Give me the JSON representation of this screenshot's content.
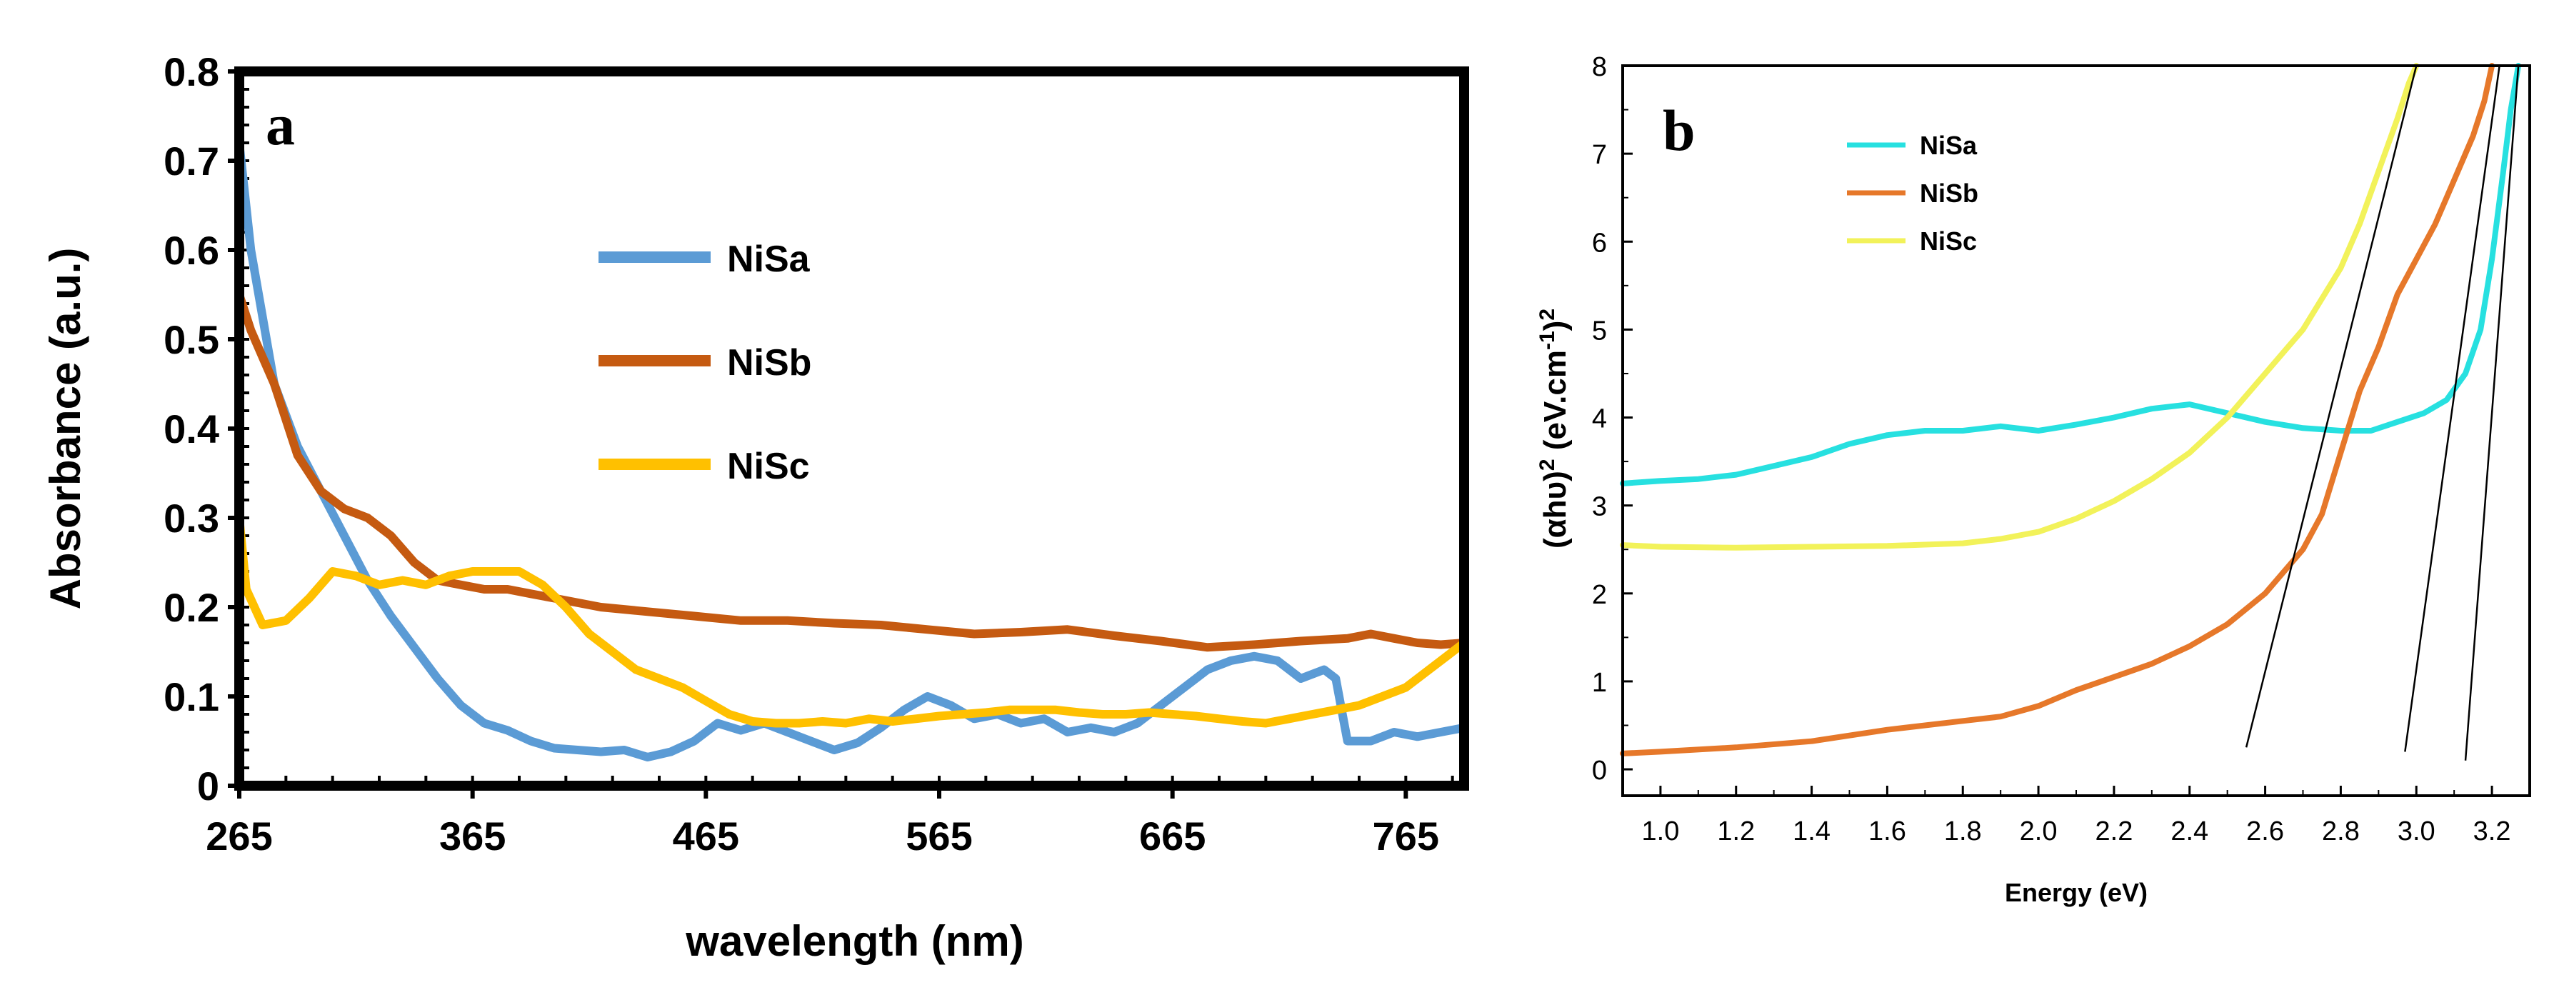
{
  "chart_data": [
    {
      "panel_label": "a",
      "type": "line",
      "title": "",
      "xlabel": "wavelength (nm)",
      "ylabel": "Absorbance (a.u.)",
      "xlim": [
        265,
        790
      ],
      "ylim": [
        0,
        0.8
      ],
      "xticks": [
        265,
        365,
        465,
        565,
        665,
        765
      ],
      "yticks": [
        0,
        0.1,
        0.2,
        0.3,
        0.4,
        0.5,
        0.6,
        0.7,
        0.8
      ],
      "xtick_labels": [
        "265",
        "365",
        "465",
        "565",
        "665",
        "765"
      ],
      "ytick_labels": [
        "0",
        "0.1",
        "0.2",
        "0.3",
        "0.4",
        "0.5",
        "0.6",
        "0.7",
        "0.8"
      ],
      "legend_position": "center",
      "series": [
        {
          "name": "NiSa",
          "color": "#5b9bd5",
          "points": [
            [
              265,
              0.72
            ],
            [
              270,
              0.6
            ],
            [
              280,
              0.45
            ],
            [
              290,
              0.38
            ],
            [
              300,
              0.33
            ],
            [
              310,
              0.28
            ],
            [
              320,
              0.23
            ],
            [
              330,
              0.19
            ],
            [
              340,
              0.155
            ],
            [
              350,
              0.12
            ],
            [
              360,
              0.09
            ],
            [
              370,
              0.07
            ],
            [
              380,
              0.062
            ],
            [
              390,
              0.05
            ],
            [
              400,
              0.042
            ],
            [
              410,
              0.04
            ],
            [
              420,
              0.038
            ],
            [
              430,
              0.04
            ],
            [
              440,
              0.032
            ],
            [
              450,
              0.038
            ],
            [
              460,
              0.05
            ],
            [
              470,
              0.07
            ],
            [
              480,
              0.062
            ],
            [
              490,
              0.07
            ],
            [
              500,
              0.06
            ],
            [
              510,
              0.05
            ],
            [
              520,
              0.04
            ],
            [
              530,
              0.048
            ],
            [
              540,
              0.065
            ],
            [
              550,
              0.085
            ],
            [
              560,
              0.1
            ],
            [
              570,
              0.09
            ],
            [
              580,
              0.075
            ],
            [
              590,
              0.08
            ],
            [
              600,
              0.07
            ],
            [
              610,
              0.075
            ],
            [
              620,
              0.06
            ],
            [
              630,
              0.065
            ],
            [
              640,
              0.06
            ],
            [
              650,
              0.07
            ],
            [
              660,
              0.09
            ],
            [
              670,
              0.11
            ],
            [
              680,
              0.13
            ],
            [
              690,
              0.14
            ],
            [
              700,
              0.145
            ],
            [
              710,
              0.14
            ],
            [
              720,
              0.12
            ],
            [
              730,
              0.13
            ],
            [
              735,
              0.12
            ],
            [
              740,
              0.05
            ],
            [
              750,
              0.05
            ],
            [
              760,
              0.06
            ],
            [
              770,
              0.055
            ],
            [
              780,
              0.06
            ],
            [
              790,
              0.065
            ]
          ]
        },
        {
          "name": "NiSb",
          "color": "#c55a11",
          "points": [
            [
              265,
              0.55
            ],
            [
              270,
              0.51
            ],
            [
              280,
              0.45
            ],
            [
              290,
              0.37
            ],
            [
              300,
              0.33
            ],
            [
              310,
              0.31
            ],
            [
              320,
              0.3
            ],
            [
              330,
              0.28
            ],
            [
              340,
              0.25
            ],
            [
              350,
              0.23
            ],
            [
              360,
              0.225
            ],
            [
              370,
              0.22
            ],
            [
              380,
              0.22
            ],
            [
              390,
              0.215
            ],
            [
              400,
              0.21
            ],
            [
              420,
              0.2
            ],
            [
              440,
              0.195
            ],
            [
              460,
              0.19
            ],
            [
              480,
              0.185
            ],
            [
              500,
              0.185
            ],
            [
              520,
              0.182
            ],
            [
              540,
              0.18
            ],
            [
              560,
              0.175
            ],
            [
              580,
              0.17
            ],
            [
              600,
              0.172
            ],
            [
              620,
              0.175
            ],
            [
              640,
              0.168
            ],
            [
              660,
              0.162
            ],
            [
              680,
              0.155
            ],
            [
              700,
              0.158
            ],
            [
              720,
              0.162
            ],
            [
              740,
              0.165
            ],
            [
              750,
              0.17
            ],
            [
              760,
              0.165
            ],
            [
              770,
              0.16
            ],
            [
              780,
              0.158
            ],
            [
              790,
              0.16
            ]
          ]
        },
        {
          "name": "NiSc",
          "color": "#ffc000",
          "points": [
            [
              265,
              0.3
            ],
            [
              268,
              0.22
            ],
            [
              275,
              0.18
            ],
            [
              285,
              0.185
            ],
            [
              295,
              0.21
            ],
            [
              305,
              0.24
            ],
            [
              315,
              0.235
            ],
            [
              325,
              0.225
            ],
            [
              335,
              0.23
            ],
            [
              345,
              0.225
            ],
            [
              355,
              0.235
            ],
            [
              365,
              0.24
            ],
            [
              375,
              0.24
            ],
            [
              385,
              0.24
            ],
            [
              395,
              0.225
            ],
            [
              405,
              0.2
            ],
            [
              415,
              0.17
            ],
            [
              425,
              0.15
            ],
            [
              435,
              0.13
            ],
            [
              445,
              0.12
            ],
            [
              455,
              0.11
            ],
            [
              465,
              0.095
            ],
            [
              475,
              0.08
            ],
            [
              485,
              0.072
            ],
            [
              495,
              0.07
            ],
            [
              505,
              0.07
            ],
            [
              515,
              0.072
            ],
            [
              525,
              0.07
            ],
            [
              535,
              0.075
            ],
            [
              545,
              0.072
            ],
            [
              555,
              0.075
            ],
            [
              565,
              0.078
            ],
            [
              575,
              0.08
            ],
            [
              585,
              0.082
            ],
            [
              595,
              0.085
            ],
            [
              605,
              0.085
            ],
            [
              615,
              0.085
            ],
            [
              625,
              0.082
            ],
            [
              635,
              0.08
            ],
            [
              645,
              0.08
            ],
            [
              655,
              0.082
            ],
            [
              665,
              0.08
            ],
            [
              675,
              0.078
            ],
            [
              685,
              0.075
            ],
            [
              695,
              0.072
            ],
            [
              705,
              0.07
            ],
            [
              715,
              0.075
            ],
            [
              725,
              0.08
            ],
            [
              735,
              0.085
            ],
            [
              745,
              0.09
            ],
            [
              755,
              0.1
            ],
            [
              765,
              0.11
            ],
            [
              775,
              0.13
            ],
            [
              785,
              0.15
            ],
            [
              790,
              0.16
            ]
          ]
        }
      ]
    },
    {
      "panel_label": "b",
      "type": "line",
      "title": "",
      "xlabel": "Energy (eV)",
      "ylabel": "(αhυ)²(eV.cm⁻¹)²",
      "ylabel_parts": [
        "(αhυ)",
        "2",
        " (eV.cm",
        "-1",
        ")",
        "2"
      ],
      "xlim": [
        0.9,
        3.3
      ],
      "ylim": [
        -0.3,
        8
      ],
      "xticks": [
        1.0,
        1.2,
        1.4,
        1.6,
        1.8,
        2.0,
        2.2,
        2.4,
        2.6,
        2.8,
        3.0,
        3.2
      ],
      "yticks": [
        0,
        1,
        2,
        3,
        4,
        5,
        6,
        7,
        8
      ],
      "xtick_labels": [
        "1.0",
        "1.2",
        "1.4",
        "1.6",
        "1.8",
        "2.0",
        "2.2",
        "2.4",
        "2.6",
        "2.8",
        "3.0",
        "3.2"
      ],
      "ytick_labels": [
        "0",
        "1",
        "2",
        "3",
        "4",
        "5",
        "6",
        "7",
        "8"
      ],
      "legend_position": "top-left",
      "series": [
        {
          "name": "NiSa",
          "color": "#27e0e0",
          "points": [
            [
              0.9,
              3.25
            ],
            [
              1.0,
              3.28
            ],
            [
              1.1,
              3.3
            ],
            [
              1.2,
              3.35
            ],
            [
              1.3,
              3.45
            ],
            [
              1.4,
              3.55
            ],
            [
              1.5,
              3.7
            ],
            [
              1.6,
              3.8
            ],
            [
              1.7,
              3.85
            ],
            [
              1.8,
              3.85
            ],
            [
              1.9,
              3.9
            ],
            [
              2.0,
              3.85
            ],
            [
              2.1,
              3.92
            ],
            [
              2.2,
              4.0
            ],
            [
              2.3,
              4.1
            ],
            [
              2.4,
              4.15
            ],
            [
              2.5,
              4.05
            ],
            [
              2.6,
              3.95
            ],
            [
              2.7,
              3.88
            ],
            [
              2.8,
              3.85
            ],
            [
              2.88,
              3.85
            ],
            [
              2.95,
              3.95
            ],
            [
              3.02,
              4.05
            ],
            [
              3.08,
              4.2
            ],
            [
              3.13,
              4.5
            ],
            [
              3.17,
              5.0
            ],
            [
              3.2,
              5.8
            ],
            [
              3.23,
              6.8
            ],
            [
              3.25,
              7.5
            ],
            [
              3.27,
              8.0
            ]
          ]
        },
        {
          "name": "NiSb",
          "color": "#e6782a",
          "points": [
            [
              0.9,
              0.18
            ],
            [
              1.0,
              0.2
            ],
            [
              1.2,
              0.25
            ],
            [
              1.4,
              0.32
            ],
            [
              1.6,
              0.45
            ],
            [
              1.8,
              0.55
            ],
            [
              1.9,
              0.6
            ],
            [
              2.0,
              0.72
            ],
            [
              2.1,
              0.9
            ],
            [
              2.2,
              1.05
            ],
            [
              2.3,
              1.2
            ],
            [
              2.4,
              1.4
            ],
            [
              2.5,
              1.65
            ],
            [
              2.6,
              2.0
            ],
            [
              2.7,
              2.5
            ],
            [
              2.75,
              2.9
            ],
            [
              2.8,
              3.6
            ],
            [
              2.85,
              4.3
            ],
            [
              2.9,
              4.8
            ],
            [
              2.95,
              5.4
            ],
            [
              3.0,
              5.8
            ],
            [
              3.05,
              6.2
            ],
            [
              3.1,
              6.7
            ],
            [
              3.15,
              7.2
            ],
            [
              3.18,
              7.6
            ],
            [
              3.2,
              8.0
            ]
          ]
        },
        {
          "name": "NiSc",
          "color": "#f2f25a",
          "points": [
            [
              0.9,
              2.55
            ],
            [
              1.0,
              2.53
            ],
            [
              1.2,
              2.52
            ],
            [
              1.4,
              2.53
            ],
            [
              1.6,
              2.54
            ],
            [
              1.8,
              2.57
            ],
            [
              1.9,
              2.62
            ],
            [
              2.0,
              2.7
            ],
            [
              2.1,
              2.85
            ],
            [
              2.2,
              3.05
            ],
            [
              2.3,
              3.3
            ],
            [
              2.4,
              3.6
            ],
            [
              2.5,
              4.0
            ],
            [
              2.6,
              4.5
            ],
            [
              2.7,
              5.0
            ],
            [
              2.8,
              5.7
            ],
            [
              2.85,
              6.2
            ],
            [
              2.9,
              6.8
            ],
            [
              2.95,
              7.4
            ],
            [
              2.98,
              7.8
            ],
            [
              3.0,
              8.0
            ]
          ]
        }
      ],
      "tangent_lines": [
        {
          "x1": 2.55,
          "y1": 0.25,
          "x2": 3.0,
          "y2": 8.0
        },
        {
          "x1": 2.97,
          "y1": 0.2,
          "x2": 3.22,
          "y2": 8.0
        },
        {
          "x1": 3.13,
          "y1": 0.1,
          "x2": 3.27,
          "y2": 8.0
        }
      ]
    }
  ]
}
